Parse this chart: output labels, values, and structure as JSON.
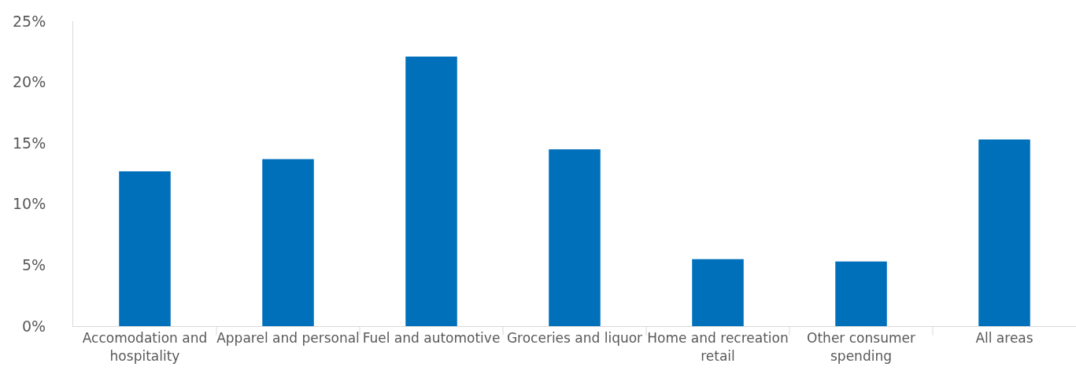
{
  "chart_data": {
    "type": "bar",
    "categories": [
      "Accomodation and hospitality",
      "Apparel and personal",
      "Fuel and automotive",
      "Groceries and liquor",
      "Home and recreation retail",
      "Other consumer spending",
      "All areas"
    ],
    "values": [
      12.7,
      13.7,
      22.1,
      14.5,
      5.5,
      5.3,
      15.3
    ],
    "color": "#0070bb",
    "ylim": [
      0,
      25
    ],
    "yticks": [
      {
        "value": 0,
        "label": "0%"
      },
      {
        "value": 5,
        "label": "5%"
      },
      {
        "value": 10,
        "label": "10%"
      },
      {
        "value": 15,
        "label": "15%"
      },
      {
        "value": 20,
        "label": "20%"
      },
      {
        "value": 25,
        "label": "25%"
      }
    ],
    "grid": false,
    "legend": false
  }
}
